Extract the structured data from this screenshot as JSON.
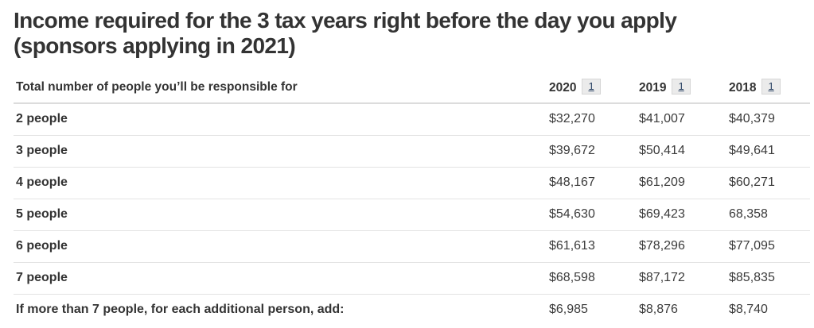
{
  "page": {
    "title_line1": "Income required for the 3 tax years right before the day you apply",
    "title_line2": "(sponsors applying in 2021)"
  },
  "table": {
    "header": {
      "label": "Total number of people you’ll be responsible for",
      "years": [
        {
          "label": "2020",
          "footnote": "1"
        },
        {
          "label": "2019",
          "footnote": "1"
        },
        {
          "label": "2018",
          "footnote": "1"
        }
      ]
    },
    "rows": [
      {
        "label": "2 people",
        "values": [
          "$32,270",
          "$41,007",
          "$40,379"
        ]
      },
      {
        "label": "3 people",
        "values": [
          "$39,672",
          "$50,414",
          "$49,641"
        ]
      },
      {
        "label": "4 people",
        "values": [
          "$48,167",
          "$61,209",
          "$60,271"
        ]
      },
      {
        "label": "5 people",
        "values": [
          "$54,630",
          "$69,423",
          "68,358"
        ]
      },
      {
        "label": "6 people",
        "values": [
          "$61,613",
          "$78,296",
          "$77,095"
        ]
      },
      {
        "label": "7 people",
        "values": [
          "$68,598",
          "$87,172",
          "$85,835"
        ]
      },
      {
        "label": "If more than 7 people, for each additional person, add:",
        "values": [
          "$6,985",
          "$8,876",
          "$8,740"
        ]
      }
    ]
  },
  "colors": {
    "text": "#333333",
    "footnote_link": "#284162",
    "footnote_bg": "#ebebeb",
    "border": "#dcdcdc"
  }
}
